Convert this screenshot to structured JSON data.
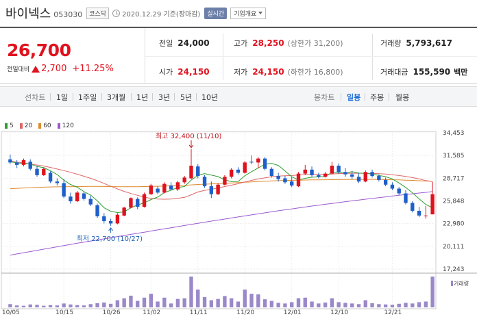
{
  "header": {
    "name": "바이넥스",
    "code": "053030",
    "market": "코스닥",
    "date_text": "2020.12.29 기준(장마감)",
    "realtime_label": "실시간",
    "overview_label": "기업개요"
  },
  "summary": {
    "price": "26,700",
    "change_label": "전일대비",
    "change": "2,700",
    "change_pct": "+11.25%",
    "prev_close_label": "전일",
    "prev_close": "24,000",
    "open_label": "시가",
    "open": "24,150",
    "high_label": "고가",
    "high": "28,250",
    "upper_limit": "(상한가 31,200)",
    "low_label": "저가",
    "low": "24,150",
    "lower_limit": "(하한가 16,800)",
    "volume_label": "거래량",
    "volume": "5,793,617",
    "amount_label": "거래대금",
    "amount": "155,590",
    "amount_unit": "백만"
  },
  "tabs": {
    "line_chart_label": "선차트",
    "line_items": [
      "1일",
      "1주일",
      "3개월",
      "1년",
      "3년",
      "5년",
      "10년"
    ],
    "candle_chart_label": "봉차트",
    "candle_items": [
      "일봉",
      "주봉",
      "월봉"
    ],
    "active_candle": "일봉"
  },
  "colors": {
    "up": "#e0121e",
    "down": "#1f5fc9",
    "ma5": "#2ca02c",
    "ma20": "#e06666",
    "ma60": "#e08a2c",
    "ma120": "#9b59d0",
    "volume": "#9a88c9"
  },
  "chart_data": {
    "type": "candlestick",
    "legend": [
      "5",
      "20",
      "60",
      "120"
    ],
    "y_ticks": [
      "34,453",
      "31,585",
      "28,717",
      "25,848",
      "22,980",
      "20,111",
      "17,243"
    ],
    "ylim": [
      17243,
      34453
    ],
    "x_ticks": [
      "10/05",
      "10/15",
      "10/26",
      "11/02",
      "11/11",
      "11/20",
      "12/01",
      "12/10",
      "12/21"
    ],
    "annotations": {
      "max": "최고 32,400 (11/10)",
      "min": "최저 22,700 (10/27)"
    },
    "volume_label": "거래량",
    "candles": [
      [
        31100,
        31700,
        30500,
        30700
      ],
      [
        30700,
        31000,
        30000,
        30400
      ],
      [
        30400,
        31200,
        30200,
        31000
      ],
      [
        30800,
        31100,
        29700,
        29900
      ],
      [
        29900,
        30300,
        28900,
        29100
      ],
      [
        29100,
        30100,
        29000,
        29900
      ],
      [
        29400,
        29600,
        28100,
        28300
      ],
      [
        28300,
        28700,
        27800,
        28100
      ],
      [
        28100,
        28600,
        26200,
        26400
      ],
      [
        26400,
        26900,
        25500,
        25800
      ],
      [
        25800,
        27100,
        25700,
        26900
      ],
      [
        26800,
        27000,
        25900,
        26100
      ],
      [
        26100,
        26500,
        25200,
        25400
      ],
      [
        25300,
        25500,
        23700,
        23900
      ],
      [
        23900,
        24300,
        23000,
        23300
      ],
      [
        23300,
        23600,
        22700,
        23000
      ],
      [
        23000,
        24300,
        22900,
        24100
      ],
      [
        24000,
        25100,
        23900,
        25000
      ],
      [
        25000,
        26300,
        24900,
        26200
      ],
      [
        26100,
        26300,
        24800,
        25100
      ],
      [
        25100,
        26900,
        25000,
        26700
      ],
      [
        26700,
        28000,
        26600,
        27800
      ],
      [
        27400,
        27700,
        26700,
        26900
      ],
      [
        26900,
        28200,
        26800,
        28000
      ],
      [
        27800,
        28200,
        27200,
        27300
      ],
      [
        27300,
        28400,
        27100,
        28200
      ],
      [
        28200,
        29000,
        28000,
        28800
      ],
      [
        28700,
        32400,
        28600,
        30300
      ],
      [
        30200,
        30500,
        28700,
        29000
      ],
      [
        28900,
        29100,
        27500,
        27700
      ],
      [
        27700,
        28300,
        26200,
        26700
      ],
      [
        26700,
        28100,
        26600,
        27900
      ],
      [
        27900,
        29100,
        27800,
        28900
      ],
      [
        28900,
        30000,
        28700,
        29800
      ],
      [
        29800,
        30100,
        29200,
        29400
      ],
      [
        29400,
        30900,
        29300,
        30700
      ],
      [
        30800,
        31600,
        30500,
        30700
      ],
      [
        30700,
        31400,
        30000,
        31200
      ],
      [
        31200,
        31400,
        29700,
        29900
      ],
      [
        29900,
        30100,
        28800,
        29000
      ],
      [
        29000,
        29400,
        28300,
        28600
      ],
      [
        28700,
        29000,
        28000,
        28200
      ],
      [
        28300,
        28900,
        27600,
        27800
      ],
      [
        27700,
        29500,
        27600,
        29300
      ],
      [
        29300,
        30400,
        29100,
        29800
      ],
      [
        29800,
        30200,
        28900,
        29100
      ],
      [
        29100,
        29400,
        28700,
        28900
      ],
      [
        28900,
        29500,
        28800,
        29300
      ],
      [
        29300,
        30800,
        29200,
        30300
      ],
      [
        30300,
        30600,
        29300,
        29500
      ],
      [
        29500,
        30000,
        28900,
        29200
      ],
      [
        29200,
        29600,
        28600,
        28900
      ],
      [
        28900,
        29400,
        28100,
        28300
      ],
      [
        28300,
        29700,
        28200,
        29500
      ],
      [
        29500,
        29800,
        28800,
        29000
      ],
      [
        29000,
        29200,
        28300,
        28500
      ],
      [
        28500,
        28800,
        27700,
        27900
      ],
      [
        27900,
        28200,
        27200,
        27400
      ],
      [
        27400,
        27600,
        26600,
        26800
      ],
      [
        26800,
        27200,
        25400,
        25600
      ],
      [
        25600,
        25800,
        24400,
        24600
      ],
      [
        24600,
        25100,
        23800,
        24000
      ],
      [
        24000,
        25200,
        23600,
        24000
      ],
      [
        24150,
        28250,
        24150,
        26700
      ]
    ],
    "volumes": [
      0.1,
      0.06,
      0.05,
      0.09,
      0.08,
      0.05,
      0.07,
      0.06,
      0.12,
      0.09,
      0.07,
      0.06,
      0.1,
      0.13,
      0.15,
      0.11,
      0.22,
      0.28,
      0.36,
      0.2,
      0.3,
      0.42,
      0.18,
      0.3,
      0.12,
      0.26,
      0.28,
      0.95,
      0.55,
      0.32,
      0.22,
      0.26,
      0.35,
      0.28,
      0.18,
      0.55,
      0.42,
      0.4,
      0.25,
      0.2,
      0.14,
      0.12,
      0.16,
      0.28,
      0.3,
      0.18,
      0.12,
      0.15,
      0.28,
      0.16,
      0.14,
      0.12,
      0.1,
      0.22,
      0.13,
      0.1,
      0.09,
      0.08,
      0.11,
      0.14,
      0.12,
      0.16,
      0.18,
      0.95
    ],
    "ma5": [
      30800,
      30650,
      30600,
      30500,
      30200,
      30050,
      29650,
      29180,
      28480,
      27920,
      27580,
      27020,
      26580,
      25860,
      24980,
      24540,
      24380,
      24460,
      24980,
      25340,
      25600,
      26020,
      26340,
      26900,
      27200,
      27540,
      27660,
      28480,
      29080,
      29300,
      29120,
      28920,
      28520,
      28280,
      28300,
      29020,
      29540,
      30020,
      30500,
      30580,
      30340,
      29640,
      28900,
      28500,
      28700,
      28840,
      28880,
      28920,
      29460,
      29420,
      29380,
      29540,
      29380,
      29320,
      29240,
      29060,
      28920,
      28620,
      28120,
      27540,
      26880,
      26120,
      25400,
      24980
    ],
    "ma20": [
      30900,
      30750,
      30650,
      30520,
      30380,
      30260,
      30080,
      29880,
      29680,
      29460,
      29220,
      28960,
      28700,
      28400,
      28060,
      27700,
      27360,
      27050,
      26780,
      26560,
      26320,
      26160,
      26080,
      26060,
      26080,
      26170,
      26300,
      26620,
      26980,
      27180,
      27320,
      27480,
      27660,
      27840,
      28020,
      28240,
      28440,
      28620,
      28760,
      28900,
      28980,
      29020,
      29060,
      29120,
      29180,
      29200,
      29200,
      29200,
      29240,
      29300,
      29320,
      29340,
      29340,
      29340,
      29320,
      29280,
      29240,
      29160,
      29060,
      28940,
      28800,
      28620,
      28420,
      28300
    ],
    "ma60": [
      27400,
      27440,
      27480,
      27520,
      27560,
      27590,
      27610,
      27630,
      27640,
      27650,
      27660,
      27670,
      27680,
      27680,
      27670,
      27660,
      27650,
      27640,
      27640,
      27650,
      27660,
      27680,
      27700,
      27730,
      27760,
      27790,
      27820,
      27870,
      27920,
      27960,
      28000,
      28040,
      28080,
      28120,
      28160,
      28200,
      28250,
      28300,
      28340,
      28380,
      28410,
      28430,
      28450,
      28470,
      28490,
      28500,
      28510,
      28520,
      28530,
      28540,
      28550,
      28560,
      28560,
      28560,
      28560,
      28550,
      28540,
      28520,
      28500,
      28470,
      28440,
      28400,
      28360,
      28330
    ],
    "ma120": [
      19000,
      19150,
      19300,
      19450,
      19600,
      19750,
      19900,
      20050,
      20200,
      20350,
      20500,
      20640,
      20780,
      20920,
      21060,
      21200,
      21340,
      21480,
      21620,
      21760,
      21900,
      22040,
      22180,
      22320,
      22460,
      22600,
      22740,
      22880,
      23020,
      23160,
      23300,
      23430,
      23560,
      23690,
      23820,
      23950,
      24080,
      24210,
      24340,
      24470,
      24600,
      24720,
      24840,
      24960,
      25080,
      25200,
      25310,
      25420,
      25530,
      25640,
      25750,
      25860,
      25960,
      26060,
      26160,
      26260,
      26360,
      26460,
      26560,
      26660,
      26750,
      26840,
      26930,
      27020
    ]
  }
}
